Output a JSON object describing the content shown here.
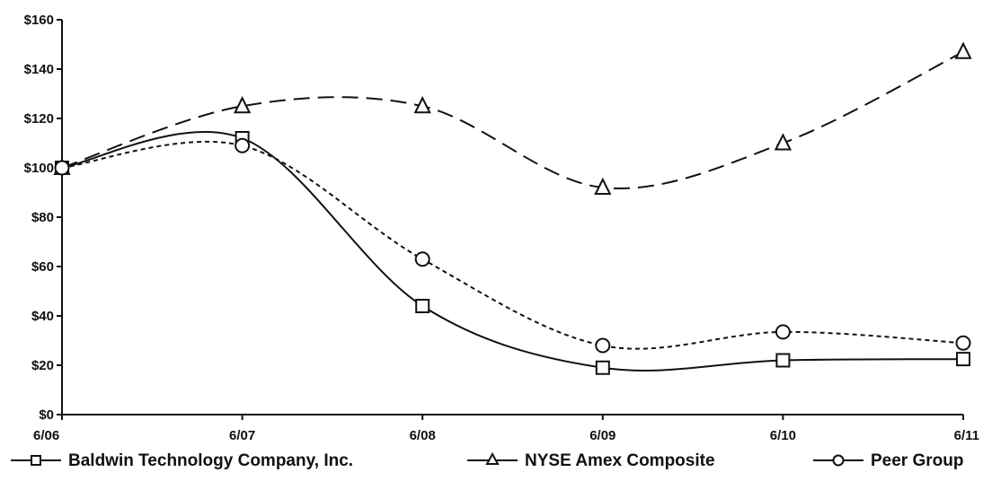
{
  "chart_data": {
    "type": "line",
    "categories": [
      "6/06",
      "6/07",
      "6/08",
      "6/09",
      "6/10",
      "6/11"
    ],
    "ylim": [
      0,
      160
    ],
    "yticks": [
      0,
      20,
      40,
      60,
      80,
      100,
      120,
      140,
      160
    ],
    "ytick_labels": [
      "$0",
      "$20",
      "$40",
      "$60",
      "$80",
      "$100",
      "$120",
      "$140",
      "$160"
    ],
    "grid": false,
    "legend_position": "bottom",
    "series": [
      {
        "name": "Baldwin Technology Company, Inc.",
        "marker": "square",
        "line_style": "solid",
        "values": [
          100,
          112,
          44,
          19,
          22,
          22.5
        ]
      },
      {
        "name": "NYSE Amex Composite",
        "marker": "triangle",
        "line_style": "long-dash",
        "values": [
          100,
          125,
          125,
          92,
          110,
          147
        ]
      },
      {
        "name": "Peer Group",
        "marker": "circle",
        "line_style": "short-dash",
        "values": [
          100,
          109,
          63,
          28,
          33.5,
          29
        ]
      }
    ]
  }
}
